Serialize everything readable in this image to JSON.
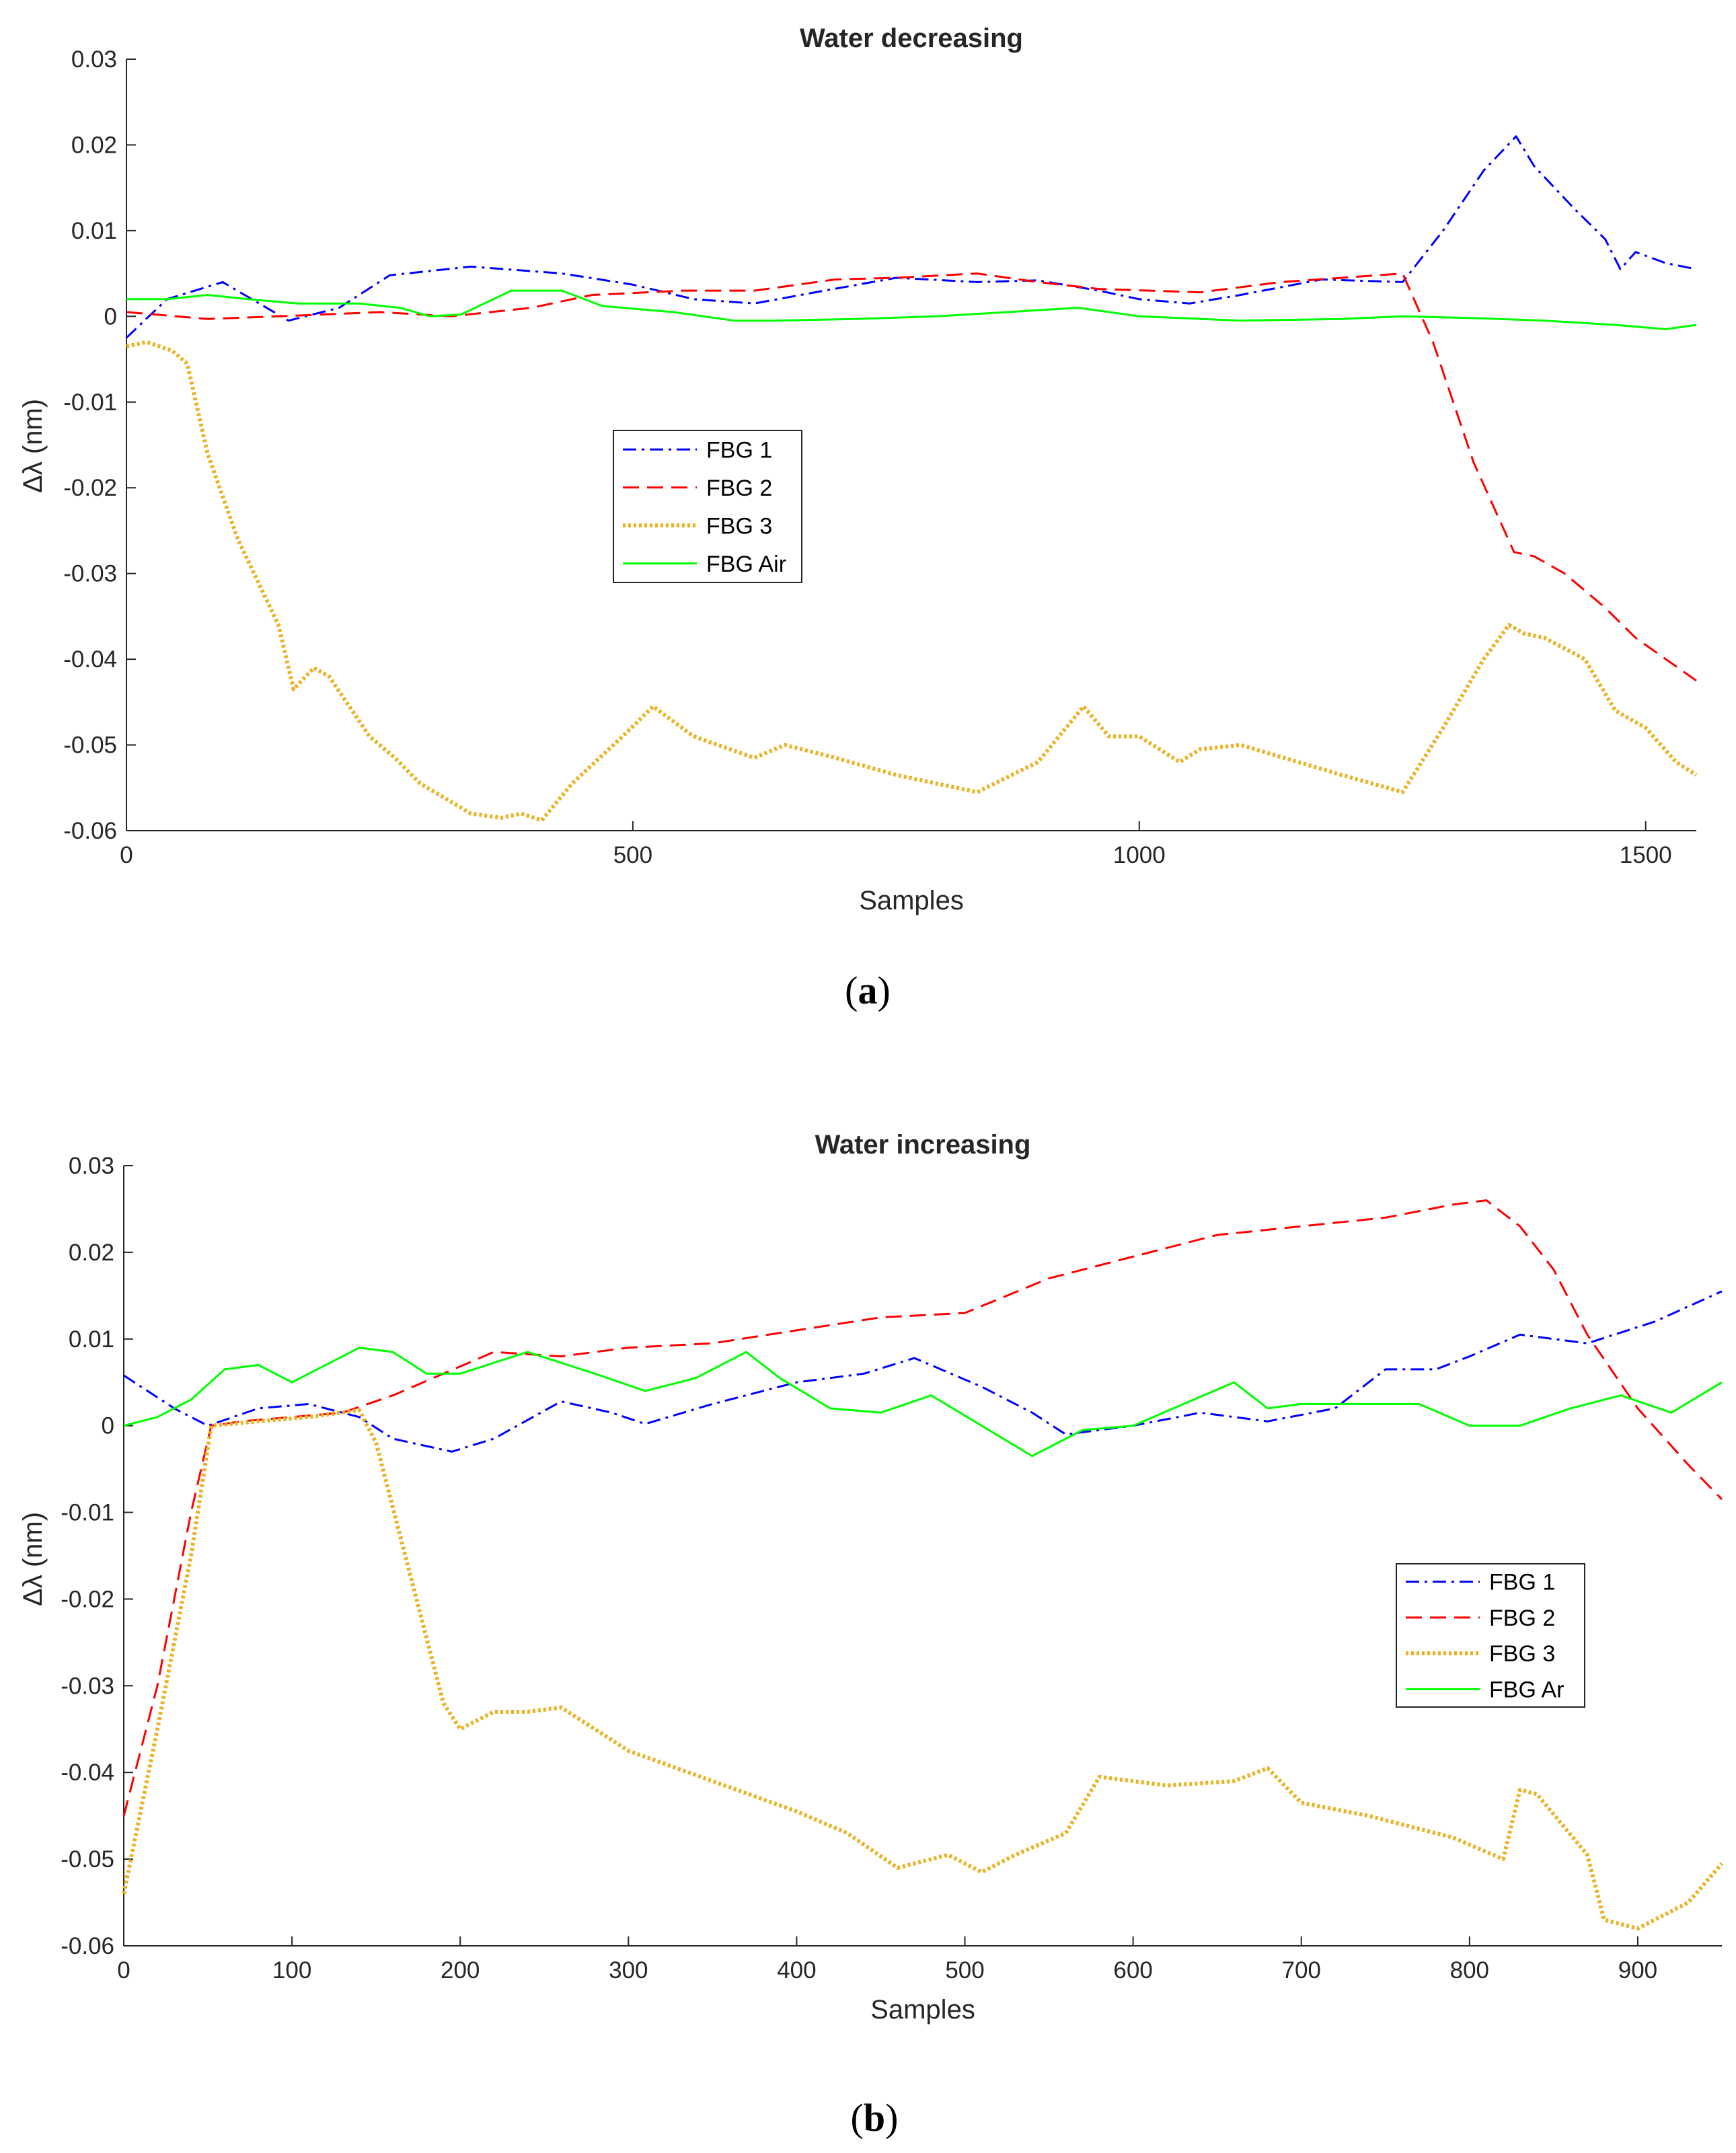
{
  "chart_data": [
    {
      "id": "a",
      "type": "line",
      "title": "Water decreasing",
      "xlabel": "Samples",
      "ylabel": "Δλ (nm)",
      "caption_letter": "a",
      "xlim": [
        0,
        1550
      ],
      "ylim": [
        -0.06,
        0.03
      ],
      "xticks": [
        0,
        500,
        1000,
        1500
      ],
      "xtick_labels": [
        "0",
        "500",
        "1000",
        "1500"
      ],
      "yticks": [
        0.03,
        0.02,
        0.01,
        0,
        -0.01,
        -0.02,
        -0.03,
        -0.04,
        -0.05,
        -0.06
      ],
      "ytick_labels": [
        "0.03",
        "0.02",
        "0.01",
        "0",
        "-0.01",
        "-0.02",
        "-0.03",
        "-0.04",
        "-0.05",
        "-0.06"
      ],
      "legend_position": "center-left",
      "series": [
        {
          "name": "FBG 1",
          "color": "#0000ff",
          "style": "dashdot",
          "x": [
            0,
            40,
            95,
            160,
            210,
            260,
            340,
            430,
            500,
            560,
            620,
            680,
            760,
            840,
            900,
            960,
            1000,
            1050,
            1100,
            1180,
            1260,
            1300,
            1340,
            1372,
            1390,
            1430,
            1460,
            1475,
            1490,
            1520,
            1550
          ],
          "y": [
            -0.0025,
            0.002,
            0.004,
            -0.0005,
            0.001,
            0.0048,
            0.0058,
            0.005,
            0.0037,
            0.002,
            0.0015,
            0.0028,
            0.0045,
            0.004,
            0.0042,
            0.003,
            0.002,
            0.0015,
            0.0025,
            0.0043,
            0.004,
            0.01,
            0.017,
            0.021,
            0.0175,
            0.0125,
            0.009,
            0.0055,
            0.0075,
            0.0062,
            0.0055
          ]
        },
        {
          "name": "FBG 2",
          "color": "#ff0000",
          "style": "dashed",
          "x": [
            0,
            80,
            150,
            250,
            320,
            400,
            460,
            550,
            620,
            700,
            760,
            840,
            900,
            960,
            1060,
            1140,
            1200,
            1260,
            1290,
            1330,
            1370,
            1390,
            1420,
            1460,
            1490,
            1520,
            1550
          ],
          "y": [
            0.0005,
            -0.0003,
            0.0,
            0.0005,
            0.0,
            0.001,
            0.0025,
            0.003,
            0.003,
            0.0043,
            0.0045,
            0.005,
            0.004,
            0.0032,
            0.0028,
            0.004,
            0.0045,
            0.005,
            -0.003,
            -0.017,
            -0.0275,
            -0.028,
            -0.03,
            -0.034,
            -0.0375,
            -0.04,
            -0.0425
          ]
        },
        {
          "name": "FBG 3",
          "color": "#edb120",
          "style": "dotted",
          "x": [
            0,
            20,
            45,
            60,
            80,
            110,
            150,
            165,
            185,
            200,
            240,
            265,
            290,
            340,
            370,
            390,
            410,
            440,
            490,
            520,
            560,
            620,
            650,
            700,
            760,
            840,
            900,
            945,
            970,
            1000,
            1040,
            1060,
            1100,
            1200,
            1260,
            1300,
            1340,
            1365,
            1380,
            1400,
            1440,
            1470,
            1500,
            1530,
            1550
          ],
          "y": [
            -0.0035,
            -0.003,
            -0.004,
            -0.0055,
            -0.016,
            -0.026,
            -0.036,
            -0.0435,
            -0.041,
            -0.042,
            -0.049,
            -0.0515,
            -0.0545,
            -0.058,
            -0.0585,
            -0.058,
            -0.0588,
            -0.0545,
            -0.049,
            -0.0455,
            -0.049,
            -0.0515,
            -0.05,
            -0.0515,
            -0.0535,
            -0.0555,
            -0.052,
            -0.0455,
            -0.049,
            -0.049,
            -0.052,
            -0.0505,
            -0.05,
            -0.0535,
            -0.0555,
            -0.048,
            -0.04,
            -0.036,
            -0.037,
            -0.0375,
            -0.04,
            -0.046,
            -0.048,
            -0.052,
            -0.0535
          ]
        },
        {
          "name": "FBG Air",
          "color": "#00ff00",
          "style": "solid",
          "x": [
            0,
            40,
            80,
            120,
            170,
            230,
            270,
            300,
            330,
            380,
            430,
            470,
            540,
            600,
            640,
            720,
            800,
            870,
            940,
            1000,
            1100,
            1200,
            1260,
            1330,
            1400,
            1470,
            1520,
            1550
          ],
          "y": [
            0.002,
            0.002,
            0.0025,
            0.002,
            0.0015,
            0.0015,
            0.001,
            0.0,
            0.0002,
            0.003,
            0.003,
            0.0012,
            0.0005,
            -0.0005,
            -0.0005,
            -0.0003,
            0.0,
            0.0005,
            0.001,
            0.0,
            -0.0005,
            -0.0003,
            0.0,
            -0.0002,
            -0.0005,
            -0.001,
            -0.0015,
            -0.001
          ]
        }
      ]
    },
    {
      "id": "b",
      "type": "line",
      "title": "Water increasing",
      "xlabel": "Samples",
      "ylabel": "Δλ (nm)",
      "caption_letter": "b",
      "xlim": [
        0,
        950
      ],
      "ylim": [
        -0.06,
        0.03
      ],
      "xticks": [
        0,
        100,
        200,
        300,
        400,
        500,
        600,
        700,
        800,
        900
      ],
      "xtick_labels": [
        "0",
        "100",
        "200",
        "300",
        "400",
        "500",
        "600",
        "700",
        "800",
        "900"
      ],
      "yticks": [
        0.03,
        0.02,
        0.01,
        0,
        -0.01,
        -0.02,
        -0.03,
        -0.04,
        -0.05,
        -0.06
      ],
      "ytick_labels": [
        "0.03",
        "0.02",
        "0.01",
        "0",
        "-0.01",
        "-0.02",
        "-0.03",
        "-0.04",
        "-0.05",
        "-0.06"
      ],
      "legend_position": "center-right",
      "series": [
        {
          "name": "FBG 1",
          "color": "#0000ff",
          "style": "dashdot",
          "x": [
            0,
            30,
            50,
            80,
            110,
            140,
            160,
            195,
            220,
            260,
            290,
            310,
            350,
            400,
            440,
            470,
            510,
            540,
            560,
            600,
            640,
            680,
            720,
            750,
            780,
            800,
            830,
            870,
            910,
            950
          ],
          "y": [
            0.0058,
            0.002,
            0.0,
            0.002,
            0.0025,
            0.001,
            -0.0015,
            -0.003,
            -0.0015,
            0.0028,
            0.0015,
            0.0002,
            0.0025,
            0.005,
            0.006,
            0.0078,
            0.0045,
            0.0015,
            -0.001,
            0.0,
            0.0015,
            0.0005,
            0.002,
            0.0065,
            0.0065,
            0.008,
            0.0105,
            0.0095,
            0.012,
            0.0155
          ]
        },
        {
          "name": "FBG 2",
          "color": "#ff0000",
          "style": "dashed",
          "x": [
            0,
            20,
            40,
            52,
            70,
            100,
            130,
            160,
            190,
            220,
            260,
            300,
            350,
            400,
            450,
            500,
            550,
            600,
            650,
            700,
            750,
            790,
            810,
            830,
            850,
            870,
            900,
            930,
            950
          ],
          "y": [
            -0.045,
            -0.03,
            -0.01,
            0.0,
            0.0005,
            0.001,
            0.0015,
            0.0035,
            0.006,
            0.0085,
            0.008,
            0.009,
            0.0095,
            0.011,
            0.0125,
            0.013,
            0.017,
            0.0195,
            0.022,
            0.023,
            0.024,
            0.0255,
            0.026,
            0.023,
            0.018,
            0.0105,
            0.002,
            -0.0045,
            -0.0085
          ]
        },
        {
          "name": "FBG 3",
          "color": "#edb120",
          "style": "dotted",
          "x": [
            0,
            20,
            40,
            52,
            80,
            110,
            140,
            150,
            170,
            190,
            200,
            220,
            240,
            260,
            300,
            350,
            400,
            430,
            460,
            490,
            510,
            530,
            560,
            580,
            620,
            660,
            680,
            700,
            740,
            790,
            820,
            830,
            840,
            870,
            880,
            900,
            930,
            950
          ],
          "y": [
            -0.054,
            -0.035,
            -0.015,
            0.0,
            0.0005,
            0.001,
            0.0018,
            -0.002,
            -0.017,
            -0.032,
            -0.035,
            -0.033,
            -0.033,
            -0.0325,
            -0.0375,
            -0.041,
            -0.0445,
            -0.047,
            -0.051,
            -0.0495,
            -0.0515,
            -0.0495,
            -0.047,
            -0.0405,
            -0.0415,
            -0.041,
            -0.0395,
            -0.0435,
            -0.045,
            -0.0475,
            -0.05,
            -0.042,
            -0.0425,
            -0.0495,
            -0.057,
            -0.058,
            -0.055,
            -0.0505
          ]
        },
        {
          "name": "FBG Ar",
          "color": "#00ff00",
          "style": "solid",
          "x": [
            0,
            20,
            40,
            60,
            80,
            100,
            140,
            160,
            180,
            200,
            240,
            280,
            310,
            340,
            370,
            390,
            420,
            450,
            480,
            510,
            540,
            570,
            600,
            630,
            660,
            680,
            700,
            740,
            770,
            800,
            830,
            860,
            890,
            920,
            950
          ],
          "y": [
            0.0,
            0.001,
            0.003,
            0.0065,
            0.007,
            0.005,
            0.009,
            0.0085,
            0.006,
            0.006,
            0.0085,
            0.006,
            0.004,
            0.0055,
            0.0085,
            0.0055,
            0.002,
            0.0015,
            0.0035,
            0.0,
            -0.0035,
            -0.0005,
            0.0,
            0.0025,
            0.005,
            0.002,
            0.0025,
            0.0025,
            0.0025,
            0.0,
            0.0,
            0.002,
            0.0035,
            0.0015,
            0.005
          ]
        }
      ]
    }
  ]
}
